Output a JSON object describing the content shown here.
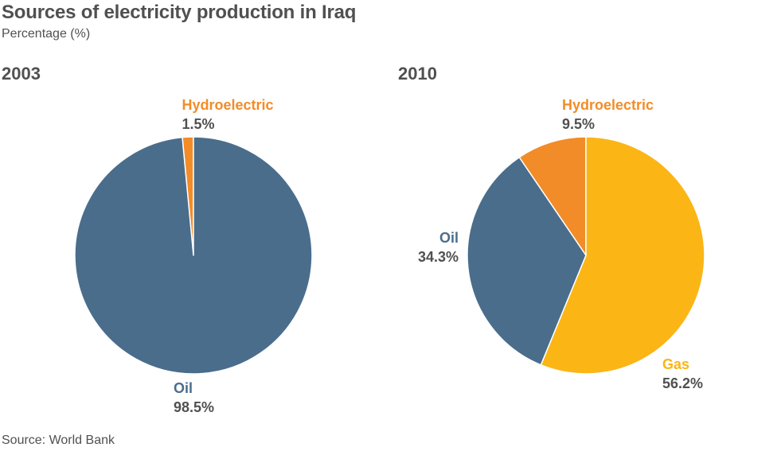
{
  "header": {
    "title": "Sources of electricity production in Iraq",
    "subtitle": "Percentage (%)"
  },
  "footer": {
    "source": "Source: World Bank"
  },
  "colors": {
    "oil": "#4a6d8c",
    "hydroelectric": "#f28c28",
    "gas": "#fbb515"
  },
  "chart_data": [
    {
      "type": "pie",
      "title": "2003",
      "slices": [
        {
          "label": "Hydroelectric",
          "value": 1.5,
          "display": "1.5%",
          "color": "#f28c28"
        },
        {
          "label": "Oil",
          "value": 98.5,
          "display": "98.5%",
          "color": "#4a6d8c"
        }
      ]
    },
    {
      "type": "pie",
      "title": "2010",
      "slices": [
        {
          "label": "Hydroelectric",
          "value": 9.5,
          "display": "9.5%",
          "color": "#f28c28"
        },
        {
          "label": "Gas",
          "value": 56.2,
          "display": "56.2%",
          "color": "#fbb515"
        },
        {
          "label": "Oil",
          "value": 34.3,
          "display": "34.3%",
          "color": "#4a6d8c"
        }
      ]
    }
  ]
}
